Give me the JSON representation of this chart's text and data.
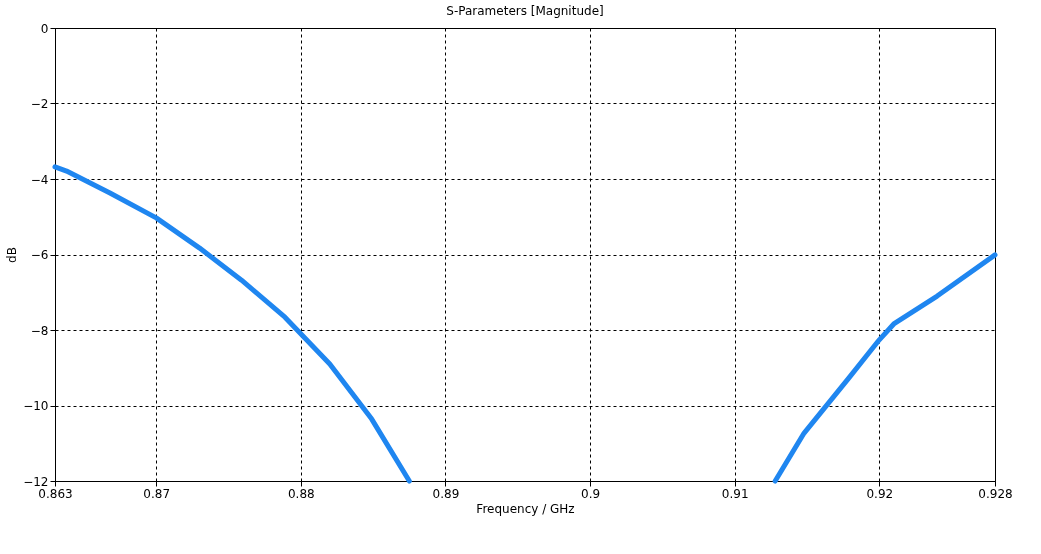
{
  "chart_data": {
    "type": "line",
    "title": "S-Parameters [Magnitude]",
    "xlabel": "Frequency / GHz",
    "ylabel": "dB",
    "xlim": [
      0.863,
      0.928
    ],
    "ylim": [
      -12,
      0
    ],
    "xticks": [
      0.863,
      0.87,
      0.88,
      0.89,
      0.9,
      0.91,
      0.92,
      0.928
    ],
    "yticks": [
      -12,
      -10,
      -8,
      -6,
      -4,
      -2,
      0
    ],
    "grid": true,
    "legend": false,
    "line_style": "solid",
    "marker": "none",
    "series": [
      {
        "color": "#1f86f0",
        "x": [
          0.863,
          0.8638,
          0.8668,
          0.87,
          0.873,
          0.8759,
          0.8789,
          0.882,
          0.8849,
          0.8875
        ],
        "values": [
          -3.68,
          -3.79,
          -4.37,
          -5.03,
          -5.83,
          -6.68,
          -7.66,
          -8.9,
          -10.36,
          -12
        ]
      },
      {
        "color": "#1f86f0",
        "x": [
          0.9128,
          0.9148,
          0.9179,
          0.92,
          0.921,
          0.924,
          0.928
        ],
        "values": [
          -12,
          -10.73,
          -9.27,
          -8.26,
          -7.84,
          -7.1,
          -6.01
        ]
      }
    ]
  }
}
